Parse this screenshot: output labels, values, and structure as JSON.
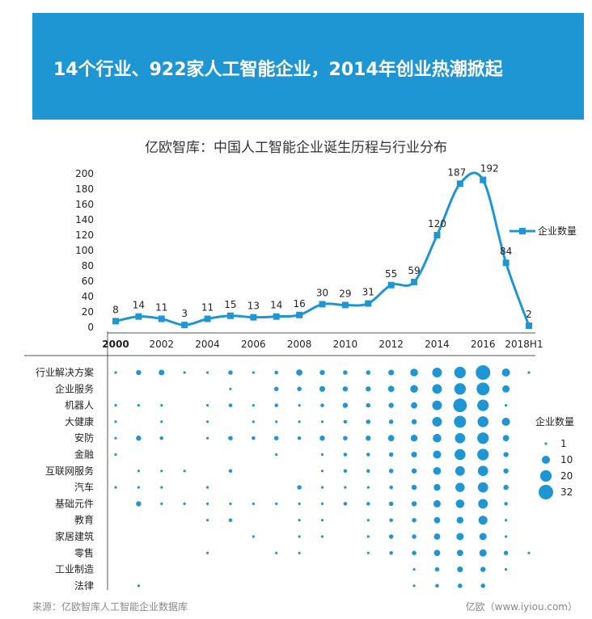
{
  "header": {
    "title": "14个行业、922家人工智能企业，2014年创业热潮掀起"
  },
  "chart_title": "亿欧智库：中国人工智能企业诞生历程与行业分布",
  "footer": {
    "source": "来源：亿欧智库人工智能企业数据库",
    "brand": "亿欧（www.iyiou.com）"
  },
  "colors": {
    "banner": "#1e96d4",
    "series": "#1e96d4"
  },
  "chart_data": [
    {
      "type": "line",
      "series": [
        {
          "name": "企业数量",
          "x": [
            "2000",
            "2001",
            "2002",
            "2003",
            "2004",
            "2005",
            "2006",
            "2007",
            "2008",
            "2009",
            "2010",
            "2011",
            "2012",
            "2013",
            "2014",
            "2015",
            "2016",
            "2017",
            "2018H1"
          ],
          "values": [
            8,
            14,
            11,
            3,
            11,
            15,
            13,
            14,
            16,
            30,
            29,
            31,
            55,
            59,
            120,
            187,
            192,
            84,
            2
          ]
        }
      ],
      "x_tick_labels": [
        "2000",
        "2002",
        "2004",
        "2006",
        "2008",
        "2010",
        "2012",
        "2014",
        "2016",
        "2018H1"
      ],
      "y_ticks": [
        0,
        20,
        40,
        60,
        80,
        100,
        120,
        140,
        160,
        180,
        200
      ],
      "ylim": [
        0,
        200
      ],
      "legend": "right",
      "data_labels": true
    },
    {
      "type": "scatter",
      "title": "企业数量",
      "categories": [
        "行业解决方案",
        "企业服务",
        "机器人",
        "大健康",
        "安防",
        "金融",
        "互联网服务",
        "汽车",
        "基础元件",
        "教育",
        "家居建筑",
        "零售",
        "工业制造",
        "法律"
      ],
      "x": [
        "2000",
        "2001",
        "2002",
        "2003",
        "2004",
        "2005",
        "2006",
        "2007",
        "2008",
        "2009",
        "2010",
        "2011",
        "2012",
        "2013",
        "2014",
        "2015",
        "2016",
        "2017",
        "2018H1"
      ],
      "size_legend": [
        1,
        10,
        20,
        32
      ],
      "values": [
        [
          1,
          4,
          5,
          1,
          1,
          3,
          1,
          2,
          6,
          4,
          3,
          3,
          5,
          9,
          14,
          20,
          32,
          10,
          1
        ],
        [
          0,
          0,
          0,
          0,
          0,
          1,
          0,
          3,
          3,
          5,
          4,
          4,
          6,
          9,
          14,
          20,
          25,
          8,
          0
        ],
        [
          1,
          1,
          1,
          0,
          1,
          2,
          1,
          2,
          1,
          2,
          4,
          3,
          4,
          6,
          14,
          28,
          20,
          1,
          0
        ],
        [
          1,
          0,
          1,
          0,
          1,
          0,
          1,
          1,
          1,
          1,
          2,
          3,
          3,
          4,
          14,
          22,
          18,
          10,
          0
        ],
        [
          1,
          4,
          2,
          0,
          1,
          3,
          2,
          3,
          2,
          4,
          3,
          4,
          6,
          7,
          11,
          16,
          20,
          6,
          0
        ],
        [
          1,
          0,
          0,
          0,
          0,
          0,
          0,
          1,
          0,
          1,
          2,
          2,
          3,
          5,
          10,
          18,
          20,
          4,
          0
        ],
        [
          0,
          1,
          1,
          1,
          0,
          2,
          0,
          0,
          0,
          1,
          2,
          2,
          3,
          4,
          9,
          14,
          16,
          4,
          0
        ],
        [
          1,
          1,
          1,
          0,
          1,
          0,
          0,
          0,
          3,
          1,
          1,
          1,
          2,
          4,
          7,
          13,
          16,
          4,
          0
        ],
        [
          0,
          4,
          1,
          1,
          1,
          1,
          1,
          1,
          1,
          1,
          2,
          2,
          3,
          4,
          8,
          11,
          14,
          2,
          0
        ],
        [
          0,
          0,
          0,
          0,
          1,
          2,
          0,
          0,
          1,
          1,
          0,
          1,
          2,
          3,
          6,
          7,
          12,
          1,
          0
        ],
        [
          0,
          0,
          0,
          0,
          0,
          0,
          1,
          0,
          1,
          1,
          0,
          1,
          3,
          3,
          6,
          8,
          8,
          1,
          0
        ],
        [
          0,
          0,
          0,
          0,
          1,
          0,
          0,
          1,
          1,
          0,
          0,
          1,
          2,
          3,
          6,
          6,
          8,
          3,
          1
        ],
        [
          0,
          0,
          0,
          0,
          0,
          0,
          0,
          0,
          0,
          0,
          0,
          0,
          0,
          1,
          3,
          5,
          4,
          1,
          0
        ],
        [
          0,
          1,
          0,
          0,
          0,
          0,
          0,
          0,
          0,
          0,
          0,
          0,
          0,
          1,
          2,
          3,
          3,
          0,
          0
        ]
      ]
    }
  ]
}
